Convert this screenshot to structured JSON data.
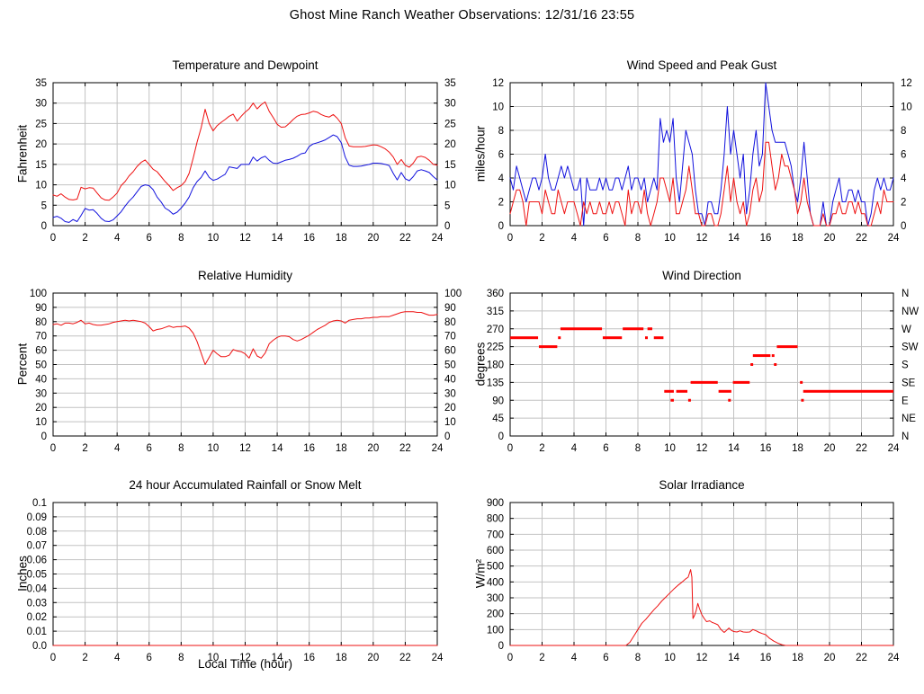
{
  "title": "Ghost Mine Ranch Weather Observations: 12/31/16 23:55",
  "colors": {
    "red": "#ee1111",
    "blue": "#1111dd",
    "grid": "#c2c2c2",
    "border": "#000000"
  },
  "chart_data": [
    {
      "type": "line",
      "title": "Temperature and Dewpoint",
      "ylabel": "Fahrenheit",
      "xlim": [
        0,
        24
      ],
      "ylim": [
        0,
        35
      ],
      "xticks": [
        0,
        2,
        4,
        6,
        8,
        10,
        12,
        14,
        16,
        18,
        20,
        22,
        24
      ],
      "yticks": [
        0,
        5,
        10,
        15,
        20,
        25,
        30,
        35
      ],
      "y2": "mirror",
      "grid": true,
      "legend": "none",
      "series": [
        {
          "name": "temperature",
          "color": "#ee1111",
          "x0": 0,
          "dx": 0.25,
          "values": [
            7.5,
            7.2,
            7.8,
            7.0,
            6.4,
            6.3,
            6.5,
            9.4,
            9.0,
            9.3,
            9.2,
            8.0,
            6.8,
            6.3,
            6.2,
            7.0,
            8.0,
            9.8,
            10.8,
            12.2,
            13.2,
            14.5,
            15.5,
            16.1,
            15.0,
            13.8,
            13.2,
            12.0,
            10.8,
            9.8,
            8.6,
            9.3,
            9.8,
            10.8,
            12.8,
            16.5,
            20.5,
            24.0,
            28.5,
            25.0,
            23.2,
            24.5,
            25.3,
            26.0,
            26.8,
            27.3,
            25.6,
            26.8,
            27.8,
            28.6,
            30.0,
            28.6,
            29.6,
            30.3,
            28.0,
            26.5,
            24.8,
            24.1,
            24.2,
            25.0,
            26.0,
            26.8,
            27.2,
            27.3,
            27.6,
            28.0,
            27.8,
            27.2,
            26.8,
            26.6,
            27.2,
            26.3,
            25.0,
            21.5,
            19.5,
            19.3,
            19.3,
            19.3,
            19.4,
            19.6,
            19.8,
            19.7,
            19.3,
            18.8,
            18.0,
            16.8,
            15.0,
            16.2,
            14.8,
            14.3,
            15.3,
            16.8,
            17.0,
            16.7,
            16.0,
            15.0,
            14.8
          ]
        },
        {
          "name": "dewpoint",
          "color": "#1111dd",
          "x0": 0,
          "dx": 0.25,
          "values": [
            2.0,
            2.3,
            1.8,
            1.0,
            0.8,
            1.5,
            1.0,
            2.5,
            4.2,
            3.8,
            3.9,
            3.0,
            1.8,
            1.1,
            1.0,
            1.4,
            2.4,
            3.4,
            4.8,
            6.0,
            7.0,
            8.3,
            9.6,
            10.0,
            9.8,
            8.8,
            7.0,
            5.8,
            4.3,
            3.7,
            2.8,
            3.3,
            4.3,
            5.5,
            7.0,
            9.3,
            10.8,
            11.8,
            13.4,
            11.8,
            11.1,
            11.4,
            12.0,
            12.6,
            14.4,
            14.2,
            14.0,
            15.0,
            15.0,
            15.0,
            16.8,
            15.8,
            16.6,
            17.0,
            16.0,
            15.3,
            15.2,
            15.6,
            16.0,
            16.2,
            16.5,
            17.0,
            17.6,
            17.8,
            19.4,
            20.0,
            20.3,
            20.6,
            21.0,
            21.6,
            22.2,
            21.8,
            20.3,
            16.8,
            14.8,
            14.5,
            14.5,
            14.6,
            14.8,
            15.0,
            15.3,
            15.3,
            15.2,
            15.0,
            14.7,
            12.8,
            11.2,
            13.0,
            11.5,
            11.0,
            12.0,
            13.4,
            13.7,
            13.4,
            13.0,
            12.0,
            11.2
          ]
        }
      ]
    },
    {
      "type": "line",
      "title": "Wind Speed and Peak Gust",
      "ylabel": "miles/hour",
      "xlim": [
        0,
        24
      ],
      "ylim": [
        0,
        12
      ],
      "xticks": [
        0,
        2,
        4,
        6,
        8,
        10,
        12,
        14,
        16,
        18,
        20,
        22,
        24
      ],
      "yticks": [
        0,
        2,
        4,
        6,
        8,
        10,
        12
      ],
      "y2": "mirror",
      "grid": true,
      "legend": "none",
      "series": [
        {
          "name": "peak-gust",
          "color": "#1111dd",
          "x0": 0,
          "dx": 0.2,
          "values": [
            4,
            3,
            5,
            4,
            3,
            2,
            3,
            4,
            4,
            3,
            4,
            6,
            4,
            3,
            3,
            4,
            5,
            4,
            5,
            4,
            3,
            3,
            4,
            0,
            4,
            3,
            3,
            3,
            4,
            3,
            4,
            3,
            3,
            4,
            4,
            3,
            4,
            5,
            3,
            4,
            4,
            3,
            4,
            2,
            3,
            4,
            3,
            9,
            7,
            8,
            7,
            9,
            4,
            2,
            5,
            8,
            7,
            6,
            3,
            1,
            1,
            0,
            2,
            2,
            1,
            1,
            3,
            6,
            10,
            6,
            8,
            6,
            4,
            6,
            1,
            3,
            6,
            8,
            5,
            6,
            12,
            10,
            8,
            7,
            7,
            7,
            7,
            6,
            5,
            3,
            2,
            4,
            7,
            4,
            1,
            0,
            0,
            0,
            2,
            0,
            0,
            2,
            3,
            4,
            2,
            2,
            3,
            3,
            2,
            3,
            2,
            2,
            0,
            1,
            3,
            4,
            3,
            4,
            3,
            3,
            4
          ]
        },
        {
          "name": "wind-speed",
          "color": "#ee1111",
          "x0": 0,
          "dx": 0.2,
          "values": [
            1,
            2,
            3,
            3,
            2,
            0,
            2,
            2,
            2,
            2,
            1,
            3,
            2,
            1,
            1,
            3,
            2,
            1,
            2,
            2,
            2,
            1,
            0,
            2,
            1,
            2,
            1,
            1,
            2,
            1,
            1,
            2,
            1,
            2,
            2,
            1,
            0,
            3,
            1,
            2,
            2,
            1,
            3,
            1,
            0,
            1,
            2,
            4,
            4,
            3,
            2,
            4,
            1,
            1,
            2,
            3,
            5,
            3,
            1,
            1,
            0,
            0,
            1,
            1,
            0,
            0,
            1,
            3,
            5,
            2,
            4,
            2,
            1,
            2,
            0,
            1,
            3,
            4,
            2,
            3,
            7,
            7,
            5,
            3,
            4,
            6,
            5,
            5,
            4,
            3,
            1,
            2,
            4,
            2,
            1,
            0,
            0,
            0,
            1,
            0,
            0,
            1,
            1,
            2,
            1,
            1,
            2,
            2,
            1,
            2,
            1,
            1,
            0,
            0,
            1,
            2,
            1,
            3,
            2,
            2,
            2
          ]
        }
      ]
    },
    {
      "type": "line",
      "title": "Relative Humidity",
      "ylabel": "Percent",
      "xlim": [
        0,
        24
      ],
      "ylim": [
        0,
        100
      ],
      "xticks": [
        0,
        2,
        4,
        6,
        8,
        10,
        12,
        14,
        16,
        18,
        20,
        22,
        24
      ],
      "yticks": [
        0,
        10,
        20,
        30,
        40,
        50,
        60,
        70,
        80,
        90,
        100
      ],
      "y2": "mirror",
      "grid": true,
      "legend": "none",
      "series": [
        {
          "name": "relative-humidity",
          "color": "#ee1111",
          "x0": 0,
          "dx": 0.25,
          "values": [
            78,
            78.5,
            77.5,
            79,
            79,
            78.5,
            79.5,
            81,
            78.5,
            79,
            78,
            77.5,
            77.5,
            78,
            78.5,
            79.5,
            80,
            80.5,
            81,
            80.5,
            81,
            80.5,
            80,
            79,
            76.5,
            73.5,
            74.5,
            75,
            76,
            77,
            76,
            76.5,
            76.5,
            77,
            75.5,
            72,
            66,
            58,
            50,
            55,
            60,
            57.5,
            55.5,
            55.5,
            56.5,
            60.5,
            59.5,
            59,
            57.5,
            54.5,
            61,
            56,
            54.5,
            58,
            64.5,
            67,
            69,
            70,
            70,
            69.5,
            67.5,
            66.5,
            67.5,
            69,
            70.5,
            72.5,
            74.5,
            76,
            77.5,
            79.5,
            80.5,
            81,
            80.5,
            79,
            81,
            81.5,
            82,
            82,
            82.5,
            82.5,
            83,
            83,
            83.5,
            83.5,
            83.5,
            84.5,
            85.5,
            86.5,
            87,
            87,
            87,
            86.5,
            86.5,
            85.5,
            84.5,
            84.5,
            85
          ]
        }
      ]
    },
    {
      "type": "scatter",
      "title": "Wind Direction",
      "ylabel": "degrees",
      "xlim": [
        0,
        24
      ],
      "ylim": [
        0,
        360
      ],
      "xticks": [
        0,
        2,
        4,
        6,
        8,
        10,
        12,
        14,
        16,
        18,
        20,
        22,
        24
      ],
      "yticks": [
        0,
        45,
        90,
        135,
        180,
        225,
        270,
        315,
        360
      ],
      "y2": [
        "N",
        "NE",
        "E",
        "SE",
        "S",
        "SW",
        "W",
        "NW",
        "N"
      ],
      "grid": true,
      "legend": "none",
      "series": [
        {
          "name": "wind-direction",
          "color": "#ff0000",
          "segments": [
            [
              0.0,
              1.75,
              247.5
            ],
            [
              1.8,
              2.95,
              225
            ],
            [
              3.0,
              3.08,
              247.5
            ],
            [
              3.15,
              5.75,
              270
            ],
            [
              5.8,
              7.0,
              247.5
            ],
            [
              7.05,
              8.35,
              270
            ],
            [
              8.45,
              8.55,
              247.5
            ],
            [
              8.6,
              8.9,
              270
            ],
            [
              9.0,
              9.6,
              247.5
            ],
            [
              9.65,
              10.25,
              112.5
            ],
            [
              10.05,
              10.25,
              90
            ],
            [
              10.4,
              11.1,
              112.5
            ],
            [
              11.15,
              11.25,
              90
            ],
            [
              11.3,
              13.0,
              135
            ],
            [
              13.05,
              13.85,
              112.5
            ],
            [
              13.65,
              13.75,
              90
            ],
            [
              13.95,
              15.0,
              135
            ],
            [
              15.05,
              15.12,
              180
            ],
            [
              15.2,
              16.3,
              202.5
            ],
            [
              16.38,
              16.45,
              202.5
            ],
            [
              16.52,
              16.6,
              180
            ],
            [
              16.7,
              18.0,
              225
            ],
            [
              18.15,
              18.22,
              135
            ],
            [
              18.22,
              18.3,
              90
            ],
            [
              18.35,
              24.0,
              112.5
            ]
          ]
        }
      ]
    },
    {
      "type": "line",
      "title": "24 hour Accumulated Rainfall or Snow Melt",
      "ylabel": "Inches",
      "xlabel": "Local Time (hour)",
      "xlim": [
        0,
        24
      ],
      "ylim": [
        0,
        0.1
      ],
      "xticks": [
        0,
        2,
        4,
        6,
        8,
        10,
        12,
        14,
        16,
        18,
        20,
        22,
        24
      ],
      "yticks": [
        0,
        0.01,
        0.02,
        0.03,
        0.04,
        0.05,
        0.06,
        0.07,
        0.08,
        0.09,
        0.1
      ],
      "ytick_labels": [
        "0.0",
        "0.01",
        "0.02",
        "0.03",
        "0.04",
        "0.05",
        "0.06",
        "0.07",
        "0.08",
        "0.09",
        "0.1"
      ],
      "y2": null,
      "grid": true,
      "legend": "none",
      "series": [
        {
          "name": "rainfall",
          "color": "#ee1111",
          "x": [
            0,
            24
          ],
          "values": [
            0,
            0
          ]
        }
      ]
    },
    {
      "type": "line",
      "title": "Solar Irradiance",
      "ylabel": "W/m²",
      "xlim": [
        0,
        24
      ],
      "ylim": [
        0,
        900
      ],
      "xticks": [
        0,
        2,
        4,
        6,
        8,
        10,
        12,
        14,
        16,
        18,
        20,
        22,
        24
      ],
      "yticks": [
        0,
        100,
        200,
        300,
        400,
        500,
        600,
        700,
        800,
        900
      ],
      "y2": null,
      "grid": true,
      "legend": "none",
      "series": [
        {
          "name": "solar-irradiance",
          "color": "#ee1111",
          "x": [
            0,
            7.25,
            7.5,
            7.75,
            8,
            8.25,
            8.5,
            8.75,
            9,
            9.25,
            9.5,
            9.75,
            10,
            10.25,
            10.5,
            10.75,
            11,
            11.15,
            11.3,
            11.38,
            11.45,
            11.55,
            11.65,
            11.75,
            11.85,
            12,
            12.15,
            12.3,
            12.5,
            12.65,
            12.8,
            13,
            13.2,
            13.4,
            13.55,
            13.7,
            13.85,
            14,
            14.2,
            14.4,
            14.6,
            14.8,
            15,
            15.2,
            15.4,
            15.6,
            15.8,
            16,
            16.25,
            16.5,
            16.75,
            17,
            17.25,
            24
          ],
          "values": [
            0,
            0,
            20,
            60,
            100,
            140,
            165,
            195,
            225,
            250,
            280,
            305,
            330,
            355,
            378,
            398,
            420,
            430,
            478,
            430,
            170,
            190,
            220,
            265,
            235,
            195,
            170,
            150,
            155,
            145,
            140,
            130,
            100,
            82,
            95,
            110,
            95,
            88,
            85,
            92,
            85,
            83,
            85,
            100,
            92,
            82,
            75,
            68,
            45,
            28,
            15,
            5,
            0,
            0
          ]
        }
      ]
    }
  ]
}
